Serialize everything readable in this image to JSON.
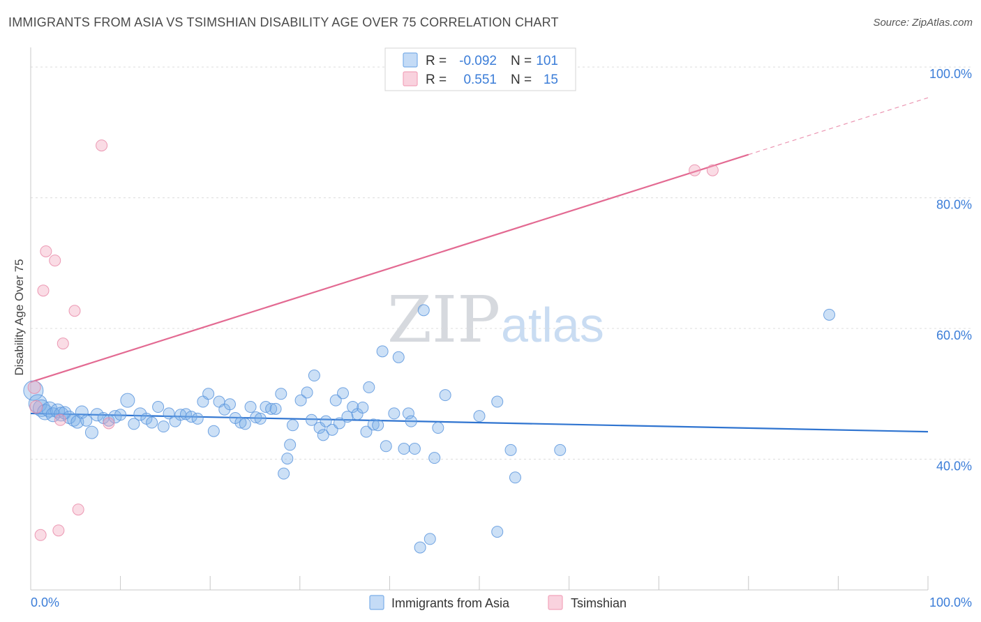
{
  "header": {
    "title": "IMMIGRANTS FROM ASIA VS TSIMSHIAN DISABILITY AGE OVER 75 CORRELATION CHART",
    "source": "Source: ZipAtlas.com"
  },
  "watermark": {
    "zip": "ZIP",
    "atlas": "atlas"
  },
  "legend": {
    "rows": [
      {
        "r_label": "R =",
        "r_value": "-0.092",
        "n_label": "N =",
        "n_value": "101",
        "color": "#7aaee8"
      },
      {
        "r_label": "R =",
        "r_value": "0.551",
        "n_label": "N =",
        "n_value": "15",
        "color": "#f2a3bb"
      }
    ]
  },
  "bottom_legend": [
    {
      "label": "Immigrants from Asia",
      "color": "#7aaee8"
    },
    {
      "label": "Tsimshian",
      "color": "#f2a3bb"
    }
  ],
  "chart_data": {
    "type": "scatter",
    "title": "IMMIGRANTS FROM ASIA VS TSIMSHIAN DISABILITY AGE OVER 75 CORRELATION CHART",
    "xlabel": "",
    "ylabel": "Disability Age Over 75",
    "xlim": [
      0,
      100
    ],
    "ylim": [
      20,
      103
    ],
    "x_tick_labels": [
      "0.0%",
      "100.0%"
    ],
    "y_ticks": [
      40,
      60,
      80,
      100
    ],
    "y_tick_labels": [
      "40.0%",
      "60.0%",
      "80.0%",
      "100.0%"
    ],
    "series": [
      {
        "name": "Immigrants from Asia",
        "color": "#7aaee8",
        "stroke": "#5b95dd",
        "trend": {
          "x0": 0,
          "y0": 47.0,
          "x1": 100,
          "y1": 44.2,
          "color": "#2f74d0"
        },
        "points": [
          [
            0.3,
            50.5,
            14
          ],
          [
            0.8,
            48.5,
            13
          ],
          [
            1.2,
            47.8,
            12
          ],
          [
            1.6,
            47.2,
            11
          ],
          [
            2.1,
            47.6,
            11
          ],
          [
            2.5,
            46.8,
            10
          ],
          [
            3.0,
            47.4,
            10
          ],
          [
            3.4,
            46.9,
            10
          ],
          [
            3.8,
            47.1,
            9
          ],
          [
            4.3,
            46.4,
            9
          ],
          [
            4.8,
            46.0,
            9
          ],
          [
            5.2,
            45.7,
            9
          ],
          [
            5.7,
            47.2,
            9
          ],
          [
            6.2,
            45.9,
            8
          ],
          [
            6.8,
            44.1,
            9
          ],
          [
            7.4,
            46.8,
            9
          ],
          [
            8.1,
            46.3,
            8
          ],
          [
            8.7,
            45.9,
            8
          ],
          [
            9.4,
            46.5,
            9
          ],
          [
            10.0,
            46.8,
            8
          ],
          [
            10.8,
            49.0,
            10
          ],
          [
            11.5,
            45.4,
            8
          ],
          [
            12.2,
            46.9,
            9
          ],
          [
            12.9,
            46.2,
            8
          ],
          [
            13.5,
            45.6,
            8
          ],
          [
            14.2,
            48.0,
            8
          ],
          [
            14.8,
            45.0,
            8
          ],
          [
            15.4,
            47.0,
            8
          ],
          [
            16.1,
            45.8,
            8
          ],
          [
            16.7,
            46.8,
            8
          ],
          [
            17.3,
            46.9,
            8
          ],
          [
            17.9,
            46.5,
            8
          ],
          [
            18.6,
            46.2,
            8
          ],
          [
            19.2,
            48.8,
            8
          ],
          [
            19.8,
            50.0,
            8
          ],
          [
            20.4,
            44.3,
            8
          ],
          [
            21.0,
            48.8,
            8
          ],
          [
            21.6,
            47.6,
            8
          ],
          [
            22.2,
            48.4,
            8
          ],
          [
            22.8,
            46.3,
            8
          ],
          [
            23.4,
            45.6,
            8
          ],
          [
            23.9,
            45.4,
            8
          ],
          [
            24.5,
            48.0,
            8
          ],
          [
            25.1,
            46.4,
            8
          ],
          [
            25.6,
            46.2,
            8
          ],
          [
            26.2,
            48.0,
            8
          ],
          [
            26.8,
            47.7,
            8
          ],
          [
            27.3,
            47.7,
            8
          ],
          [
            27.9,
            50.0,
            8
          ],
          [
            28.2,
            37.8,
            8
          ],
          [
            28.6,
            40.1,
            8
          ],
          [
            28.9,
            42.2,
            8
          ],
          [
            29.2,
            45.2,
            8
          ],
          [
            30.1,
            49.0,
            8
          ],
          [
            30.8,
            50.2,
            8
          ],
          [
            31.3,
            46.0,
            8
          ],
          [
            31.6,
            52.8,
            8
          ],
          [
            32.2,
            44.8,
            8
          ],
          [
            32.6,
            43.7,
            8
          ],
          [
            32.9,
            45.8,
            8
          ],
          [
            33.6,
            44.5,
            8
          ],
          [
            34.0,
            49.0,
            8
          ],
          [
            34.4,
            45.5,
            8
          ],
          [
            34.8,
            50.1,
            8
          ],
          [
            35.3,
            46.5,
            8
          ],
          [
            35.9,
            48.0,
            8
          ],
          [
            36.4,
            46.9,
            8
          ],
          [
            37.0,
            47.9,
            8
          ],
          [
            37.4,
            44.2,
            8
          ],
          [
            37.7,
            51.0,
            8
          ],
          [
            38.2,
            45.3,
            8
          ],
          [
            38.7,
            45.2,
            8
          ],
          [
            39.2,
            56.5,
            8
          ],
          [
            39.6,
            42.0,
            8
          ],
          [
            40.5,
            47.0,
            8
          ],
          [
            41.0,
            55.6,
            8
          ],
          [
            41.6,
            41.6,
            8
          ],
          [
            42.1,
            47.0,
            8
          ],
          [
            42.4,
            45.8,
            8
          ],
          [
            42.8,
            41.6,
            8
          ],
          [
            43.4,
            26.5,
            8
          ],
          [
            43.8,
            62.8,
            8
          ],
          [
            44.5,
            27.8,
            8
          ],
          [
            45.0,
            40.2,
            8
          ],
          [
            45.4,
            44.8,
            8
          ],
          [
            46.2,
            49.8,
            8
          ],
          [
            50.0,
            46.6,
            8
          ],
          [
            52.0,
            28.9,
            8
          ],
          [
            52.0,
            48.8,
            8
          ],
          [
            53.5,
            41.4,
            8
          ],
          [
            54.0,
            37.2,
            8
          ],
          [
            59.0,
            41.4,
            8
          ],
          [
            89.0,
            62.1,
            8
          ]
        ]
      },
      {
        "name": "Tsimshian",
        "color": "#f2a3bb",
        "stroke": "#e98aa8",
        "trend": {
          "x0": 0,
          "y0": 51.8,
          "x1": 80,
          "y1": 86.6,
          "x1_dashed": 100,
          "y1_dashed": 95.3,
          "color": "#e36a92"
        },
        "points": [
          [
            0.4,
            51.0,
            9
          ],
          [
            0.6,
            48.0,
            9
          ],
          [
            1.1,
            28.4,
            8
          ],
          [
            1.4,
            65.8,
            8
          ],
          [
            1.7,
            71.8,
            8
          ],
          [
            2.7,
            70.4,
            8
          ],
          [
            3.1,
            29.1,
            8
          ],
          [
            3.3,
            46.0,
            8
          ],
          [
            3.6,
            57.7,
            8
          ],
          [
            4.9,
            62.7,
            8
          ],
          [
            5.3,
            32.3,
            8
          ],
          [
            7.9,
            88.0,
            8
          ],
          [
            8.7,
            45.5,
            8
          ],
          [
            74.0,
            84.2,
            8
          ],
          [
            76.0,
            84.2,
            8
          ]
        ]
      }
    ],
    "legend_position": "top-center"
  }
}
